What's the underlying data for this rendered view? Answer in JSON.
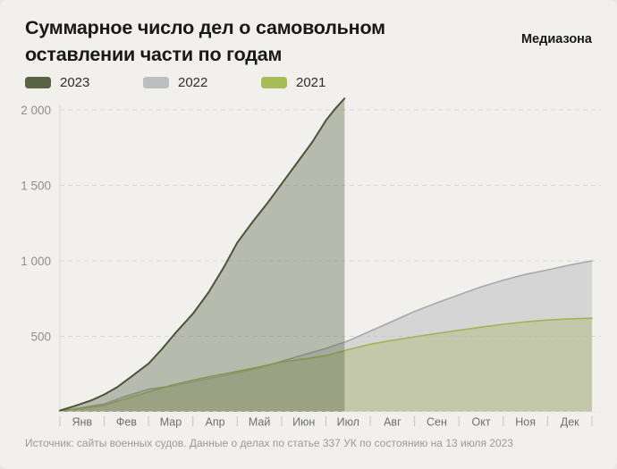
{
  "header": {
    "title_line1": "Суммарное число дел о самовольном",
    "title_line2": "оставлении части по годам",
    "brand": "Медиазона"
  },
  "legend": [
    {
      "label": "2023",
      "color": "#5a6344"
    },
    {
      "label": "2022",
      "color": "#bcbec0"
    },
    {
      "label": "2021",
      "color": "#a8bc59"
    }
  ],
  "footer": {
    "source": "Источник: сайты военных судов. Данные о делах по статье 337 УК по состоянию на 13 июля 2023"
  },
  "chart_data": {
    "type": "area",
    "title": "Суммарное число дел о самовольном оставлении части по годам",
    "xlabel": "",
    "ylabel": "",
    "x_unit": "month_index_0_is_jan1",
    "x_domain": [
      0,
      12
    ],
    "ylim": [
      0,
      2100
    ],
    "grid": "dashed-horizontal",
    "legend_position": "top-left",
    "x_tick_labels": [
      "Янв",
      "Фев",
      "Мар",
      "Апр",
      "Май",
      "Июн",
      "Июл",
      "Авг",
      "Сен",
      "Окт",
      "Ноя",
      "Дек"
    ],
    "y_ticks": [
      500,
      1000,
      1500,
      2000
    ],
    "y_tick_labels": [
      "500",
      "1 000",
      "1 500",
      "2 000"
    ],
    "series": [
      {
        "name": "2022",
        "line_color": "#a7a9ab",
        "fill_color": "rgba(189,191,193,0.55)",
        "line_width": 1.6,
        "x": [
          0,
          0.5,
          1,
          1.5,
          2,
          2.5,
          3,
          3.5,
          4,
          4.5,
          5,
          5.5,
          6,
          6.5,
          7,
          7.5,
          8,
          8.5,
          9,
          9.5,
          10,
          10.5,
          11,
          11.5,
          12
        ],
        "y": [
          5,
          28,
          52,
          105,
          150,
          170,
          198,
          228,
          258,
          290,
          335,
          378,
          420,
          470,
          535,
          600,
          665,
          722,
          775,
          828,
          872,
          910,
          940,
          972,
          1000
        ]
      },
      {
        "name": "2021",
        "line_color": "#a3b356",
        "fill_color": "rgba(178,188,128,0.5)",
        "line_width": 1.6,
        "x": [
          0,
          0.5,
          1,
          1.5,
          2,
          2.5,
          3,
          3.5,
          4,
          4.5,
          5,
          5.5,
          6,
          6.5,
          7,
          7.5,
          8,
          8.5,
          9,
          9.5,
          10,
          10.5,
          11,
          11.5,
          12
        ],
        "y": [
          5,
          22,
          42,
          88,
          132,
          175,
          210,
          240,
          268,
          298,
          330,
          350,
          372,
          412,
          448,
          474,
          497,
          519,
          540,
          561,
          580,
          596,
          608,
          616,
          620
        ]
      },
      {
        "name": "2023",
        "line_color": "#4c5339",
        "fill_color": "rgba(90,99,69,0.38)",
        "line_width": 2,
        "x": [
          0,
          0.35,
          0.7,
          1,
          1.3,
          1.6,
          2,
          2.3,
          2.6,
          3,
          3.35,
          3.7,
          4,
          4.35,
          4.7,
          5,
          5.35,
          5.7,
          6,
          6.2,
          6.42
        ],
        "y": [
          8,
          40,
          75,
          115,
          165,
          230,
          320,
          415,
          520,
          650,
          790,
          960,
          1120,
          1260,
          1390,
          1510,
          1650,
          1790,
          1930,
          2005,
          2076
        ]
      }
    ]
  }
}
